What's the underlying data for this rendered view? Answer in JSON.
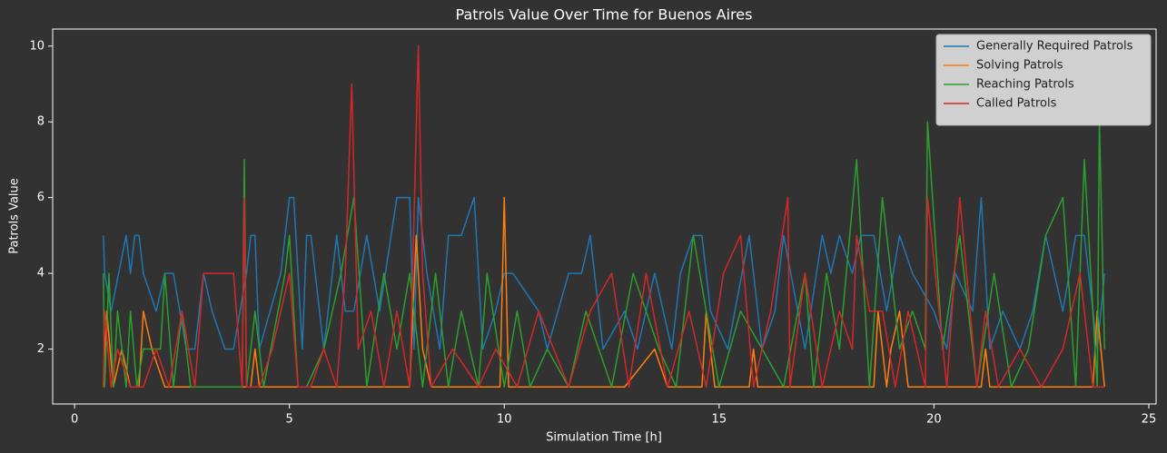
{
  "chart_data": {
    "type": "line",
    "title": "Patrols Value Over Time for Buenos Aires",
    "x_label": "Simulation Time [h]",
    "y_label": "Patrols Value",
    "xlim": [
      -0.51,
      25.17
    ],
    "ylim": [
      0.55,
      10.45
    ],
    "xticks": [
      0,
      5,
      10,
      15,
      20,
      25
    ],
    "yticks": [
      2,
      4,
      6,
      8,
      10
    ],
    "grid": false,
    "legend": "upper right",
    "series": [
      {
        "name": "Generally Required Patrols",
        "color": "#1f77b4",
        "x": [
          0.67,
          0.7,
          0.85,
          1.2,
          1.3,
          1.4,
          1.5,
          1.6,
          1.9,
          2.1,
          2.3,
          2.6,
          2.8,
          3.0,
          3.2,
          3.5,
          3.7,
          4.0,
          4.1,
          4.2,
          4.3,
          4.8,
          5.0,
          5.1,
          5.3,
          5.4,
          5.5,
          5.8,
          6.1,
          6.3,
          6.5,
          6.8,
          7.1,
          7.5,
          7.8,
          7.9,
          8.0,
          8.2,
          8.5,
          8.7,
          9.0,
          9.3,
          9.5,
          9.8,
          10.0,
          10.2,
          10.8,
          11.0,
          11.5,
          11.8,
          12.0,
          12.3,
          12.8,
          13.1,
          13.5,
          13.9,
          14.1,
          14.4,
          14.6,
          14.8,
          15.2,
          15.7,
          16.0,
          16.3,
          16.5,
          17.0,
          17.4,
          17.6,
          17.8,
          18.1,
          18.3,
          18.6,
          18.9,
          19.2,
          19.5,
          20.0,
          20.3,
          20.5,
          20.9,
          21.1,
          21.3,
          21.6,
          22.0,
          22.3,
          22.6,
          23.0,
          23.3,
          23.5,
          23.8,
          23.97
        ],
        "values": [
          5,
          4,
          3,
          5,
          4,
          5,
          5,
          4,
          3,
          4,
          4,
          2,
          2,
          4,
          3,
          2,
          2,
          4,
          5,
          5,
          2,
          4,
          6,
          6,
          2,
          5,
          5,
          2,
          5,
          3,
          3,
          5,
          3,
          6,
          6,
          2,
          6,
          4,
          2,
          5,
          5,
          6,
          2,
          3,
          4,
          4,
          3,
          2,
          4,
          4,
          5,
          2,
          3,
          2,
          4,
          2,
          4,
          5,
          5,
          3,
          2,
          5,
          2,
          3,
          5,
          2,
          5,
          4,
          5,
          4,
          5,
          5,
          3,
          5,
          4,
          3,
          2,
          4,
          3,
          6,
          2,
          3,
          2,
          3,
          5,
          3,
          5,
          5,
          2,
          4
        ]
      },
      {
        "name": "Solving Patrols",
        "color": "#ff7f0e",
        "x": [
          0.67,
          0.75,
          0.9,
          1.1,
          1.3,
          1.5,
          1.6,
          1.8,
          2.1,
          4.1,
          4.2,
          4.3,
          7.8,
          7.95,
          8.1,
          8.3,
          9.9,
          10.0,
          10.1,
          12.8,
          13.5,
          13.8,
          14.6,
          14.7,
          14.9,
          15.7,
          15.8,
          15.9,
          18.6,
          18.7,
          18.9,
          19.0,
          19.2,
          19.4,
          21.1,
          21.2,
          21.3,
          23.7,
          23.8,
          23.97
        ],
        "values": [
          1,
          3,
          1,
          2,
          1,
          1,
          3,
          2,
          1,
          1,
          2,
          1,
          1,
          5,
          2,
          1,
          1,
          6,
          1,
          1,
          2,
          1,
          1,
          3,
          1,
          1,
          2,
          1,
          1,
          3,
          1,
          2,
          3,
          1,
          1,
          2,
          1,
          1,
          3,
          1
        ]
      },
      {
        "name": "Reaching Patrols",
        "color": "#2ca02c",
        "x": [
          0.67,
          0.7,
          0.8,
          0.9,
          1.0,
          1.2,
          1.3,
          1.45,
          1.6,
          2.0,
          2.1,
          2.3,
          2.5,
          2.7,
          3.9,
          3.95,
          4.0,
          4.2,
          4.4,
          4.9,
          5.0,
          5.2,
          5.4,
          5.8,
          6.2,
          6.5,
          6.8,
          7.2,
          7.5,
          7.8,
          8.1,
          8.4,
          8.7,
          9.0,
          9.4,
          9.6,
          10.0,
          10.3,
          10.6,
          11.0,
          11.5,
          11.9,
          12.5,
          13.0,
          13.6,
          14.0,
          14.4,
          15.0,
          15.5,
          16.0,
          16.5,
          17.0,
          17.2,
          17.5,
          17.8,
          18.2,
          18.5,
          18.8,
          19.2,
          19.5,
          19.8,
          19.85,
          20.2,
          20.6,
          21.0,
          21.4,
          21.8,
          22.2,
          22.6,
          23.0,
          23.3,
          23.5,
          23.8,
          23.85,
          23.97
        ],
        "values": [
          4,
          1,
          4,
          1,
          3,
          1,
          3,
          1,
          2,
          2,
          4,
          1,
          3,
          1,
          1,
          7,
          1,
          3,
          1,
          4,
          5,
          1,
          1,
          2,
          4,
          6,
          1,
          4,
          2,
          4,
          1,
          4,
          1,
          3,
          1,
          4,
          1,
          3,
          1,
          2,
          1,
          3,
          1,
          4,
          2,
          1,
          5,
          1,
          3,
          2,
          1,
          4,
          1,
          4,
          2,
          7,
          1,
          6,
          2,
          3,
          2,
          8,
          2,
          5,
          1,
          4,
          1,
          2,
          5,
          6,
          1,
          7,
          1,
          8,
          2
        ]
      },
      {
        "name": "Called Patrols",
        "color": "#d62728",
        "x": [
          0.67,
          0.7,
          0.85,
          1.0,
          1.3,
          1.6,
          1.9,
          2.2,
          2.5,
          2.8,
          3.0,
          3.2,
          3.5,
          3.7,
          3.9,
          3.95,
          4.0,
          4.3,
          4.6,
          5.0,
          5.2,
          5.5,
          5.8,
          6.1,
          6.3,
          6.45,
          6.6,
          6.9,
          7.2,
          7.5,
          7.8,
          8.0,
          8.1,
          8.3,
          8.8,
          9.4,
          9.8,
          10.3,
          10.8,
          11.5,
          12.0,
          12.5,
          12.9,
          13.3,
          13.8,
          14.3,
          14.7,
          15.1,
          15.5,
          15.8,
          16.2,
          16.6,
          16.65,
          17.0,
          17.4,
          17.8,
          18.1,
          18.2,
          18.5,
          18.8,
          19.1,
          19.4,
          19.8,
          19.85,
          20.3,
          20.6,
          21.0,
          21.2,
          21.5,
          22.0,
          22.5,
          23.0,
          23.4,
          23.7,
          23.97
        ],
        "values": [
          1,
          3,
          1,
          2,
          1,
          1,
          2,
          1,
          3,
          1,
          4,
          4,
          4,
          4,
          1,
          6,
          1,
          1,
          2,
          4,
          1,
          1,
          2,
          1,
          4,
          9,
          2,
          3,
          1,
          3,
          1,
          10,
          4,
          1,
          2,
          1,
          2,
          1,
          3,
          1,
          3,
          4,
          1,
          4,
          1,
          3,
          1,
          4,
          5,
          1,
          3,
          6,
          1,
          4,
          1,
          3,
          2,
          5,
          3,
          3,
          1,
          3,
          1,
          6,
          1,
          6,
          1,
          3,
          1,
          2,
          1,
          2,
          4,
          1,
          1
        ]
      }
    ]
  }
}
